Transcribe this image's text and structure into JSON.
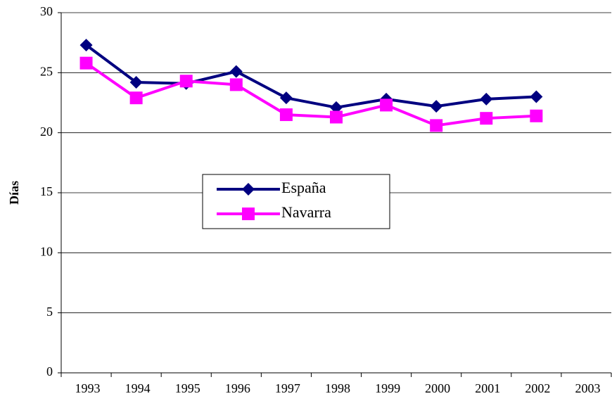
{
  "chart_data": {
    "type": "line",
    "ylabel": "Días",
    "categories": [
      "1993",
      "1994",
      "1995",
      "1996",
      "1997",
      "1998",
      "1999",
      "2000",
      "2001",
      "2002",
      "2003"
    ],
    "series": [
      {
        "name": "España",
        "color": "#000080",
        "marker": "diamond",
        "values": [
          27.3,
          24.2,
          24.1,
          25.1,
          22.9,
          22.1,
          22.8,
          22.2,
          22.8,
          23.0,
          null
        ]
      },
      {
        "name": "Navarra",
        "color": "#ff00ff",
        "marker": "square",
        "values": [
          25.8,
          22.9,
          24.3,
          24.0,
          21.5,
          21.3,
          22.3,
          20.6,
          21.2,
          21.4,
          null
        ]
      }
    ],
    "ylim": [
      0,
      30
    ],
    "yticks": [
      0,
      5,
      10,
      15,
      20,
      25,
      30
    ],
    "grid": true,
    "legend": "center"
  }
}
